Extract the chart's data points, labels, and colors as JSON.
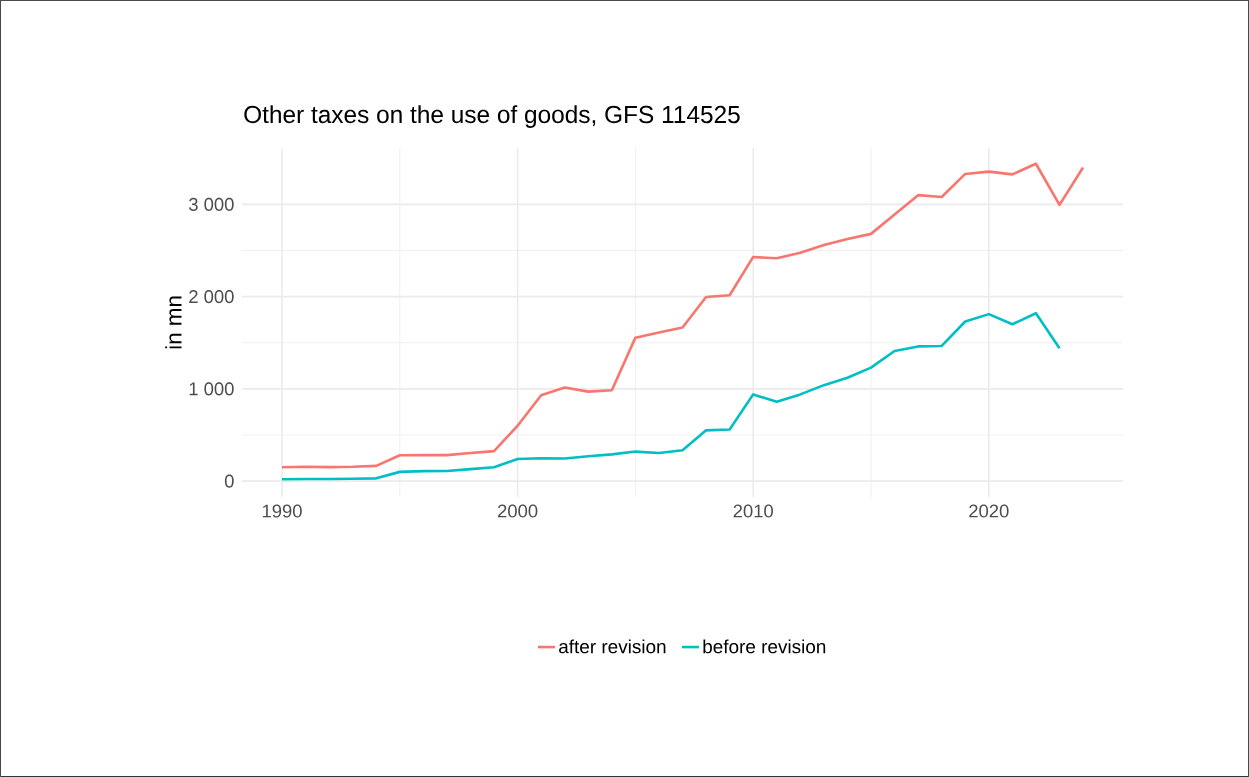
{
  "chart_data": {
    "type": "line",
    "title": "Other taxes on the use of goods, GFS 114525",
    "ylabel": "in mn",
    "x": [
      1990,
      1991,
      1992,
      1993,
      1994,
      1995,
      1996,
      1997,
      1998,
      1999,
      2000,
      2001,
      2002,
      2003,
      2004,
      2005,
      2006,
      2007,
      2008,
      2009,
      2010,
      2011,
      2012,
      2013,
      2014,
      2015,
      2016,
      2017,
      2018,
      2019,
      2020,
      2021,
      2022,
      2023,
      2024
    ],
    "series": [
      {
        "name": "after revision",
        "color": "#f8766d",
        "values": [
          150,
          155,
          152,
          155,
          165,
          280,
          282,
          282,
          305,
          325,
          600,
          930,
          1015,
          970,
          985,
          1555,
          1610,
          1665,
          1995,
          2015,
          2430,
          2415,
          2475,
          2560,
          2625,
          2680,
          2890,
          3100,
          3080,
          3330,
          3355,
          3325,
          3440,
          2995,
          3400
        ]
      },
      {
        "name": "before revision",
        "color": "#00bfc4",
        "values": [
          20,
          22,
          22,
          25,
          30,
          100,
          108,
          110,
          130,
          150,
          240,
          248,
          245,
          270,
          290,
          320,
          305,
          335,
          550,
          560,
          940,
          860,
          940,
          1040,
          1120,
          1230,
          1410,
          1460,
          1465,
          1730,
          1810,
          1700,
          1820,
          1440,
          null
        ]
      }
    ],
    "xlim": [
      1988.3,
      2025.7
    ],
    "ylim": [
      -172,
      3612
    ],
    "xticks": [
      1990,
      2000,
      2010,
      2020
    ],
    "yticks": [
      0,
      {
        "value": 1000,
        "label": "1 000"
      },
      {
        "value": 2000,
        "label": "2 000"
      },
      {
        "value": 3000,
        "label": "3 000"
      }
    ],
    "grid": true,
    "legend": "bottom",
    "marker": "none",
    "line_style": "solid"
  }
}
